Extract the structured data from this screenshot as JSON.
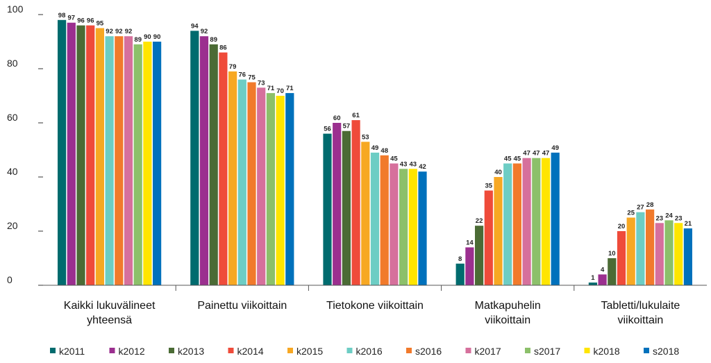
{
  "chart_data": {
    "type": "bar",
    "title": "",
    "xlabel": "",
    "ylabel": "",
    "ylim": [
      0,
      100
    ],
    "yticks": [
      0,
      20,
      40,
      60,
      80,
      100
    ],
    "grid": false,
    "legend_position": "bottom",
    "categories": [
      [
        "Kaikki lukuvälineet",
        "yhteensä"
      ],
      [
        "Painettu viikoittain"
      ],
      [
        "Tietokone viikoittain"
      ],
      [
        "Matkapuhelin",
        "viikoittain"
      ],
      [
        "Tabletti/lukulaite",
        "viikoittain"
      ]
    ],
    "series": [
      {
        "name": "k2011",
        "color": "#006b6e",
        "values": [
          98,
          94,
          56,
          8,
          1
        ]
      },
      {
        "name": "k2012",
        "color": "#9b2f8f",
        "values": [
          97,
          92,
          60,
          14,
          4
        ]
      },
      {
        "name": "k2013",
        "color": "#4b6b35",
        "values": [
          96,
          89,
          57,
          22,
          10
        ]
      },
      {
        "name": "k2014",
        "color": "#ef4b3a",
        "values": [
          96,
          86,
          61,
          35,
          20
        ]
      },
      {
        "name": "k2015",
        "color": "#f7a823",
        "values": [
          95,
          79,
          53,
          40,
          25
        ]
      },
      {
        "name": "k2016",
        "color": "#6dcdc4",
        "values": [
          92,
          76,
          49,
          45,
          27
        ]
      },
      {
        "name": "s2016",
        "color": "#f17a2b",
        "values": [
          92,
          75,
          48,
          45,
          28
        ]
      },
      {
        "name": "k2017",
        "color": "#d6709c",
        "values": [
          92,
          73,
          45,
          47,
          23
        ]
      },
      {
        "name": "s2017",
        "color": "#8cc06a",
        "values": [
          89,
          71,
          43,
          47,
          24
        ]
      },
      {
        "name": "k2018",
        "color": "#ffe500",
        "values": [
          90,
          70,
          43,
          47,
          23
        ]
      },
      {
        "name": "s2018",
        "color": "#0071bc",
        "values": [
          90,
          71,
          42,
          49,
          21
        ]
      }
    ]
  }
}
